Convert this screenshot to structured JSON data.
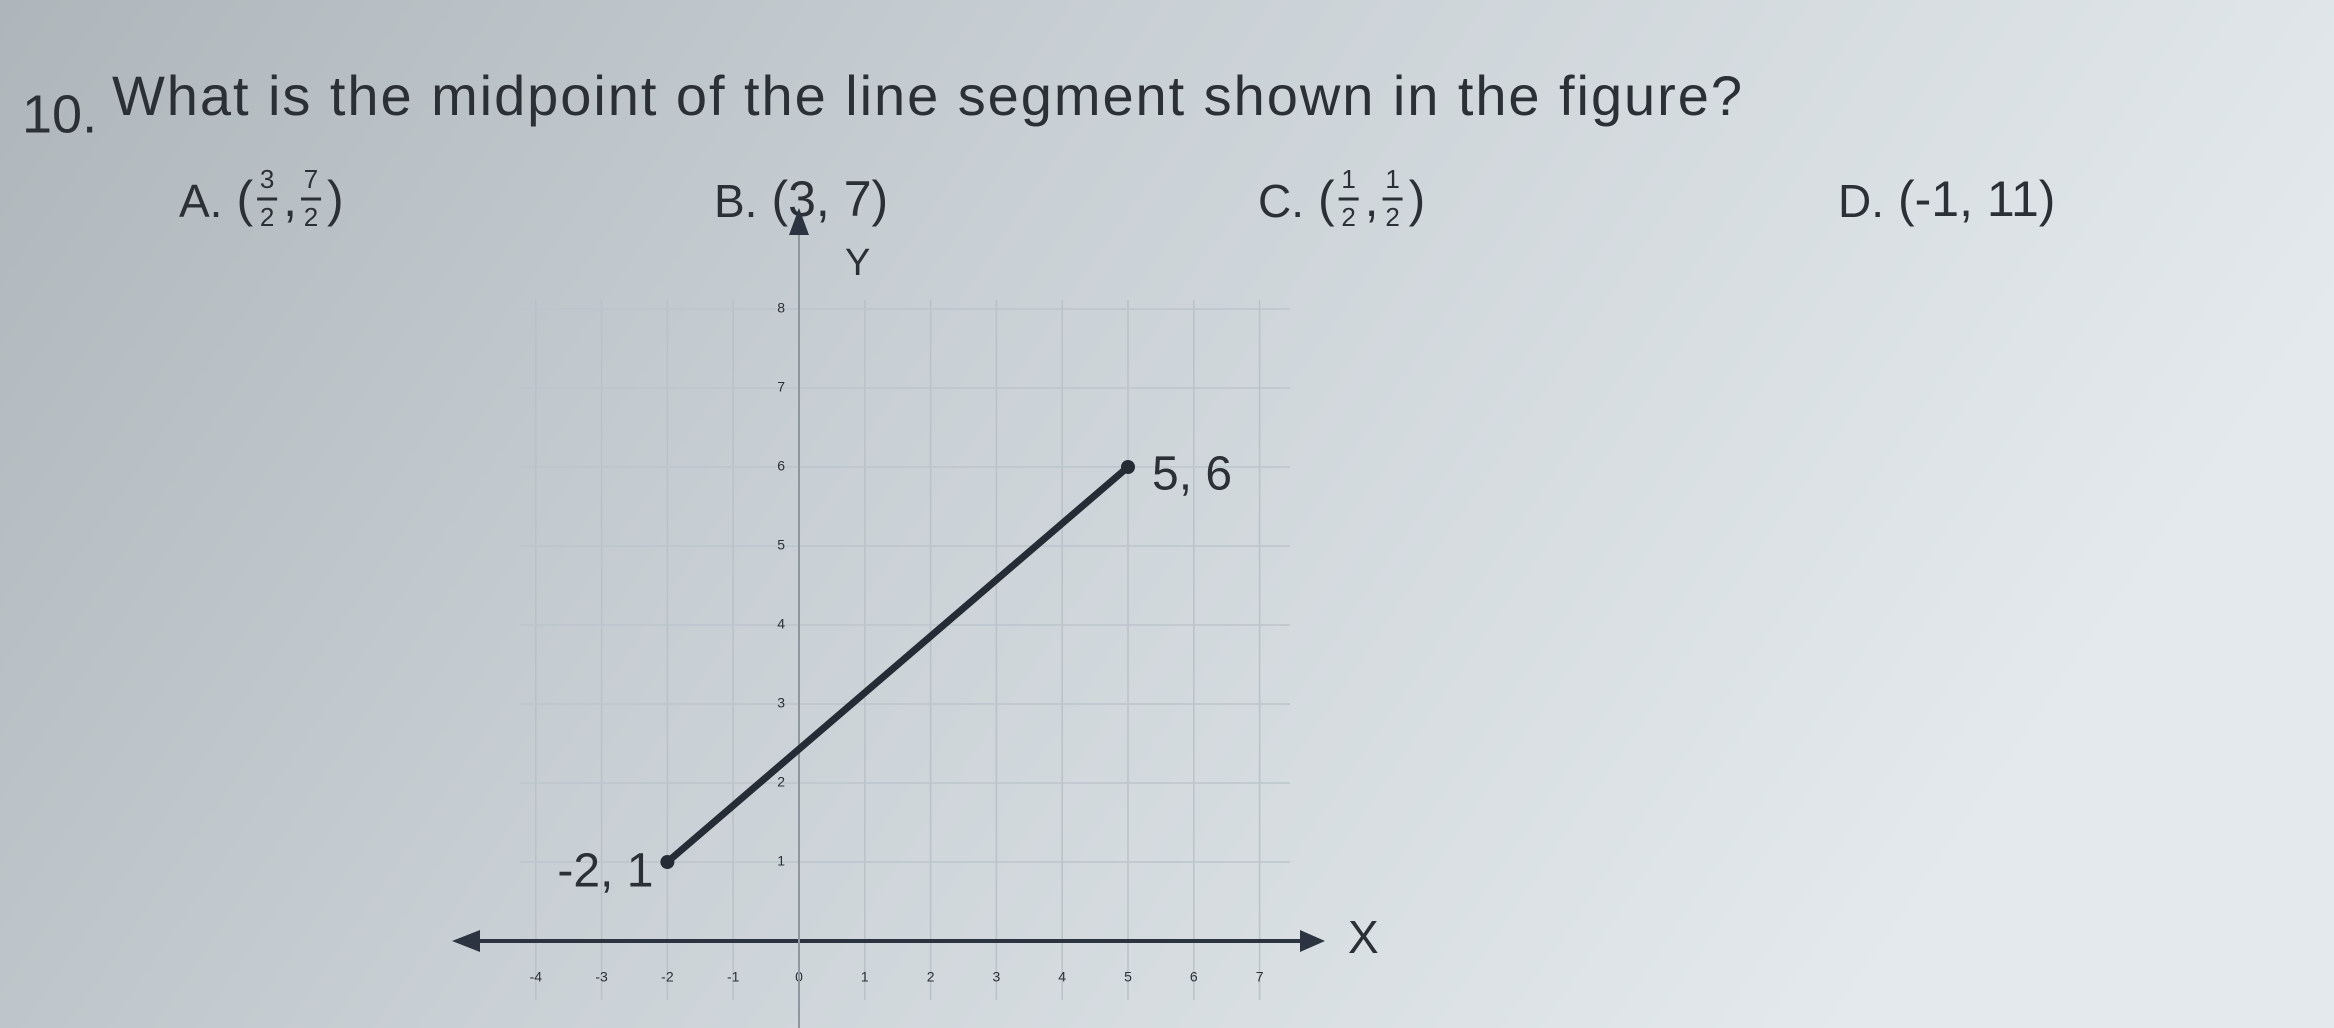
{
  "question": {
    "number": "10.",
    "text": "What is the midpoint of the line segment shown in the figure?"
  },
  "options": [
    {
      "letter": "A.",
      "parts": [
        "(",
        {
          "num": "3",
          "den": "2"
        },
        ",",
        {
          "num": "7",
          "den": "2"
        },
        ")"
      ]
    },
    {
      "letter": "B.",
      "parts": [
        "(3, 7)"
      ]
    },
    {
      "letter": "C.",
      "parts": [
        "(",
        {
          "num": "1",
          "den": "2"
        },
        ",",
        {
          "num": "1",
          "den": "2"
        },
        ")"
      ]
    },
    {
      "letter": "D.",
      "parts": [
        "(-1, 11)"
      ]
    }
  ],
  "figure": {
    "x_label": "X",
    "y_label": "Y",
    "xticks": [
      -4,
      -3,
      -2,
      -1,
      0,
      1,
      2,
      3,
      4,
      5,
      6,
      7
    ],
    "yticks": [
      1,
      2,
      3,
      4,
      5,
      6,
      7,
      8
    ],
    "points": [
      {
        "x": -2,
        "y": 1,
        "label": "-2, 1"
      },
      {
        "x": 5,
        "y": 6,
        "label": "5, 6"
      }
    ]
  }
}
